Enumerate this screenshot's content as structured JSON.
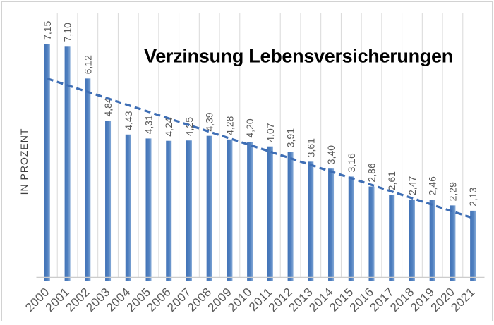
{
  "window": {
    "background": "#ffffff",
    "border_color": "#d2d2d2"
  },
  "chart_data": {
    "type": "bar",
    "title": "Verzinsung Lebensversicherungen",
    "xlabel": "",
    "ylabel": "IN PROZENT",
    "categories": [
      "2000",
      "2001",
      "2002",
      "2003",
      "2004",
      "2005",
      "2006",
      "2007",
      "2008",
      "2009",
      "2010",
      "2011",
      "2012",
      "2013",
      "2014",
      "2015",
      "2016",
      "2017",
      "2018",
      "2019",
      "2020",
      "2021"
    ],
    "values": [
      7.15,
      7.1,
      6.12,
      4.84,
      4.43,
      4.31,
      4.24,
      4.25,
      4.39,
      4.28,
      4.2,
      4.07,
      3.91,
      3.61,
      3.4,
      3.16,
      2.86,
      2.61,
      2.47,
      2.46,
      2.29,
      2.13
    ],
    "value_labels": [
      "7,15",
      "7,10",
      "6,12",
      "4,84",
      "4,43",
      "4,31",
      "4,24",
      "4,25",
      "4,39",
      "4,28",
      "4,20",
      "4,07",
      "3,91",
      "3,61",
      "3,40",
      "3,16",
      "2,86",
      "2,61",
      "2,47",
      "2,46",
      "2,29",
      "2,13"
    ],
    "ylim": [
      0,
      8.2
    ],
    "decimal_separator": ",",
    "legend": "none",
    "grid": "vertical-category-lines",
    "value_label_rotation": -90,
    "category_label_rotation": -45,
    "trendline": {
      "type": "linear",
      "style": "dashed",
      "start_value": 6.12,
      "end_value": 1.91
    },
    "colors": {
      "bar_gradient": [
        "#4273b7",
        "#5080c0",
        "#83a8d6"
      ],
      "trendline": "#3e6eb5",
      "grid": "#d9d9d9",
      "axis_line": "#cccccc",
      "value_label": "#595959",
      "category_label": "#595959",
      "title": "#000000",
      "y_axis_title": "#3f3f3f"
    }
  }
}
